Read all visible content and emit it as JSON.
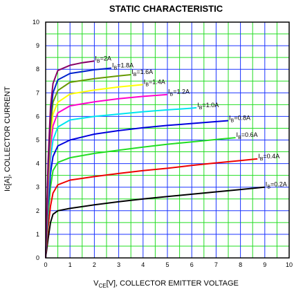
{
  "chart_data": {
    "type": "line",
    "title": "STATIC CHARACTERISTIC",
    "xlabel": {
      "prefix": "V",
      "sub": "CE",
      "suffix": "[V], COLLECTOR EMITTER VOLTAGE"
    },
    "ylabel": "Ic[A], COLLECTOR CURRENT",
    "xlim": [
      0,
      10
    ],
    "ylim": [
      0,
      10
    ],
    "xticks": [
      0,
      1,
      2,
      3,
      4,
      5,
      6,
      7,
      8,
      9,
      10
    ],
    "yticks": [
      0,
      1,
      2,
      3,
      4,
      5,
      6,
      7,
      8,
      9,
      10
    ],
    "grid": true,
    "grid_major_color": "#1a33ff",
    "grid_minor_color": "#22dd22",
    "series": [
      {
        "name": "IB=0.2A",
        "label": {
          "prefix": "I",
          "sub": "B",
          "suffix": "=0.2A"
        },
        "color": "#000000",
        "points": [
          [
            0,
            0
          ],
          [
            0.1,
            0.8
          ],
          [
            0.2,
            1.5
          ],
          [
            0.3,
            1.85
          ],
          [
            0.5,
            2.0
          ],
          [
            1,
            2.1
          ],
          [
            2,
            2.25
          ],
          [
            3,
            2.38
          ],
          [
            4,
            2.5
          ],
          [
            5,
            2.6
          ],
          [
            6,
            2.7
          ],
          [
            7,
            2.8
          ],
          [
            8,
            2.9
          ],
          [
            9,
            3.0
          ]
        ]
      },
      {
        "name": "IB=0.4A",
        "label": {
          "prefix": "I",
          "sub": "B",
          "suffix": "=0.4A"
        },
        "color": "#ee0000",
        "points": [
          [
            0,
            0
          ],
          [
            0.1,
            1.3
          ],
          [
            0.2,
            2.2
          ],
          [
            0.3,
            2.75
          ],
          [
            0.5,
            3.1
          ],
          [
            1,
            3.3
          ],
          [
            2,
            3.45
          ],
          [
            3,
            3.58
          ],
          [
            4,
            3.7
          ],
          [
            5,
            3.8
          ],
          [
            6,
            3.92
          ],
          [
            7,
            4.03
          ],
          [
            8,
            4.13
          ],
          [
            8.7,
            4.2
          ]
        ]
      },
      {
        "name": "IB=0.6A",
        "label": {
          "prefix": "I",
          "sub": "B",
          "suffix": "=0.6A"
        },
        "color": "#22dd22",
        "points": [
          [
            0,
            0
          ],
          [
            0.1,
            1.8
          ],
          [
            0.2,
            3.0
          ],
          [
            0.3,
            3.7
          ],
          [
            0.5,
            4.05
          ],
          [
            1,
            4.25
          ],
          [
            2,
            4.43
          ],
          [
            3,
            4.57
          ],
          [
            4,
            4.7
          ],
          [
            5,
            4.82
          ],
          [
            6,
            4.92
          ],
          [
            7,
            5.02
          ],
          [
            7.8,
            5.1
          ]
        ]
      },
      {
        "name": "IB=0.8A",
        "label": {
          "prefix": "I",
          "sub": "B",
          "suffix": "=0.8A"
        },
        "color": "#0000dd",
        "points": [
          [
            0,
            0
          ],
          [
            0.1,
            2.2
          ],
          [
            0.2,
            3.6
          ],
          [
            0.3,
            4.3
          ],
          [
            0.5,
            4.75
          ],
          [
            1,
            5.0
          ],
          [
            2,
            5.25
          ],
          [
            3,
            5.4
          ],
          [
            4,
            5.52
          ],
          [
            5,
            5.62
          ],
          [
            6,
            5.7
          ],
          [
            7,
            5.78
          ],
          [
            7.5,
            5.82
          ]
        ]
      },
      {
        "name": "IB=1.0A",
        "label": {
          "prefix": "I",
          "sub": "B",
          "suffix": "=1.0A"
        },
        "color": "#00e5ee",
        "points": [
          [
            0,
            0
          ],
          [
            0.1,
            2.6
          ],
          [
            0.2,
            4.2
          ],
          [
            0.3,
            5.0
          ],
          [
            0.5,
            5.55
          ],
          [
            1,
            5.85
          ],
          [
            2,
            6.0
          ],
          [
            3,
            6.1
          ],
          [
            4,
            6.2
          ],
          [
            5,
            6.28
          ],
          [
            6,
            6.35
          ],
          [
            6.2,
            6.37
          ]
        ]
      },
      {
        "name": "IB=1.2A",
        "label": {
          "prefix": "I",
          "sub": "B",
          "suffix": "=1.2A"
        },
        "color": "#ff00cc",
        "points": [
          [
            0,
            0
          ],
          [
            0.1,
            2.9
          ],
          [
            0.2,
            4.7
          ],
          [
            0.3,
            5.6
          ],
          [
            0.5,
            6.15
          ],
          [
            1,
            6.45
          ],
          [
            2,
            6.62
          ],
          [
            3,
            6.75
          ],
          [
            4,
            6.85
          ],
          [
            5,
            6.93
          ]
        ]
      },
      {
        "name": "IB=1.4A",
        "label": {
          "prefix": "I",
          "sub": "B",
          "suffix": "=1.4A"
        },
        "color": "#ffff00",
        "points": [
          [
            0,
            0
          ],
          [
            0.1,
            3.2
          ],
          [
            0.2,
            5.2
          ],
          [
            0.3,
            6.1
          ],
          [
            0.5,
            6.6
          ],
          [
            1,
            6.95
          ],
          [
            2,
            7.12
          ],
          [
            3,
            7.25
          ],
          [
            4,
            7.35
          ]
        ]
      },
      {
        "name": "IB=1.6A",
        "label": {
          "prefix": "I",
          "sub": "B",
          "suffix": "=1.6A"
        },
        "color": "#669900",
        "points": [
          [
            0,
            0
          ],
          [
            0.1,
            3.5
          ],
          [
            0.2,
            5.6
          ],
          [
            0.3,
            6.6
          ],
          [
            0.5,
            7.1
          ],
          [
            1,
            7.45
          ],
          [
            2,
            7.6
          ],
          [
            3,
            7.72
          ],
          [
            3.5,
            7.77
          ]
        ]
      },
      {
        "name": "IB=1.8A",
        "label": {
          "prefix": "I",
          "sub": "B",
          "suffix": "=1.8A"
        },
        "color": "#0022cc",
        "points": [
          [
            0,
            0
          ],
          [
            0.1,
            3.8
          ],
          [
            0.2,
            6.0
          ],
          [
            0.3,
            7.0
          ],
          [
            0.5,
            7.55
          ],
          [
            1,
            7.82
          ],
          [
            2,
            7.98
          ],
          [
            2.7,
            8.05
          ]
        ]
      },
      {
        "name": "IB=2A",
        "label": {
          "prefix": "I",
          "sub": "B",
          "suffix": "=2A"
        },
        "color": "#880066",
        "points": [
          [
            0,
            0
          ],
          [
            0.1,
            4.1
          ],
          [
            0.2,
            6.4
          ],
          [
            0.3,
            7.4
          ],
          [
            0.5,
            7.95
          ],
          [
            1,
            8.17
          ],
          [
            1.5,
            8.28
          ],
          [
            2,
            8.35
          ]
        ]
      }
    ]
  }
}
